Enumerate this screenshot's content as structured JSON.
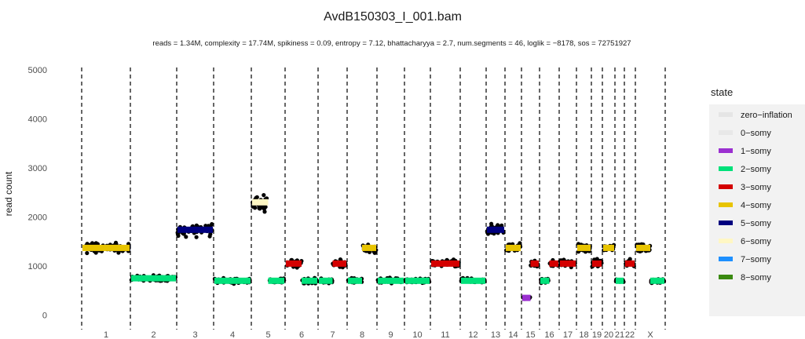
{
  "chart_data": {
    "type": "scatter",
    "title": "AvdB150303_I_001.bam",
    "subtitle": "reads = 1.34M, complexity = 17.74M,  spikiness = 0.09,  entropy = 7.12,  bhattacharyya = 2.7, num.segments = 46, loglik = −8178, sos = 72751927",
    "xlabel": "",
    "ylabel": "read count",
    "ylim": [
      -150,
      5100
    ],
    "yticks": [
      0,
      1000,
      2000,
      3000,
      4000,
      5000
    ],
    "ytick_labels": [
      "0",
      "1000",
      "2000",
      "3000",
      "4000",
      "5000"
    ],
    "grid": false,
    "legend_position": "right",
    "legend": {
      "title": "state",
      "items": [
        {
          "label": "zero−inflation",
          "color": "#e5e5e5"
        },
        {
          "label": "0−somy",
          "color": "#e8e8e8"
        },
        {
          "label": "1−somy",
          "color": "#9b30d0"
        },
        {
          "label": "2−somy",
          "color": "#00e17a"
        },
        {
          "label": "3−somy",
          "color": "#d40000"
        },
        {
          "label": "4−somy",
          "color": "#e8c400"
        },
        {
          "label": "5−somy",
          "color": "#00007f"
        },
        {
          "label": "6−somy",
          "color": "#fff7c4"
        },
        {
          "label": "7−somy",
          "color": "#1e90ff"
        },
        {
          "label": "8−somy",
          "color": "#3a8a10"
        }
      ]
    },
    "chromosomes": [
      {
        "name": "1",
        "segments": [
          {
            "state": "4−somy",
            "value": 1370
          }
        ]
      },
      {
        "name": "2",
        "segments": [
          {
            "state": "2−somy",
            "value": 750
          }
        ]
      },
      {
        "name": "3",
        "segments": [
          {
            "state": "5−somy",
            "value": 1740
          }
        ]
      },
      {
        "name": "4",
        "segments": [
          {
            "state": "2−somy",
            "value": 700
          }
        ]
      },
      {
        "name": "5",
        "segments": [
          {
            "state": "6−somy",
            "value": 2300
          },
          {
            "state": "2−somy",
            "value": 700
          }
        ]
      },
      {
        "name": "6",
        "segments": [
          {
            "state": "3−somy",
            "value": 1050
          },
          {
            "state": "2−somy",
            "value": 700
          }
        ]
      },
      {
        "name": "7",
        "segments": [
          {
            "state": "2−somy",
            "value": 700
          },
          {
            "state": "3−somy",
            "value": 1050
          }
        ]
      },
      {
        "name": "8",
        "segments": [
          {
            "state": "2−somy",
            "value": 700
          },
          {
            "state": "4−somy",
            "value": 1370
          }
        ]
      },
      {
        "name": "9",
        "segments": [
          {
            "state": "2−somy",
            "value": 700
          }
        ]
      },
      {
        "name": "10",
        "segments": [
          {
            "state": "2−somy",
            "value": 700
          }
        ]
      },
      {
        "name": "11",
        "segments": [
          {
            "state": "3−somy",
            "value": 1050
          }
        ]
      },
      {
        "name": "12",
        "segments": [
          {
            "state": "2−somy",
            "value": 700
          }
        ]
      },
      {
        "name": "13",
        "segments": [
          {
            "state": "5−somy",
            "value": 1740
          }
        ]
      },
      {
        "name": "14",
        "segments": [
          {
            "state": "4−somy",
            "value": 1370
          }
        ]
      },
      {
        "name": "15",
        "segments": [
          {
            "state": "1−somy",
            "value": 350
          },
          {
            "state": "3−somy",
            "value": 1050
          }
        ]
      },
      {
        "name": "16",
        "segments": [
          {
            "state": "2−somy",
            "value": 700
          },
          {
            "state": "3−somy",
            "value": 1050
          }
        ]
      },
      {
        "name": "17",
        "segments": [
          {
            "state": "3−somy",
            "value": 1050
          }
        ]
      },
      {
        "name": "18",
        "segments": [
          {
            "state": "4−somy",
            "value": 1370
          }
        ]
      },
      {
        "name": "19",
        "segments": [
          {
            "state": "3−somy",
            "value": 1050
          }
        ]
      },
      {
        "name": "20",
        "segments": [
          {
            "state": "4−somy",
            "value": 1370
          }
        ]
      },
      {
        "name": "21",
        "segments": [
          {
            "state": "2−somy",
            "value": 700
          }
        ]
      },
      {
        "name": "22",
        "segments": [
          {
            "state": "3−somy",
            "value": 1050
          }
        ]
      },
      {
        "name": "X",
        "segments": [
          {
            "state": "4−somy",
            "value": 1370
          },
          {
            "state": "2−somy",
            "value": 700
          }
        ]
      }
    ]
  }
}
